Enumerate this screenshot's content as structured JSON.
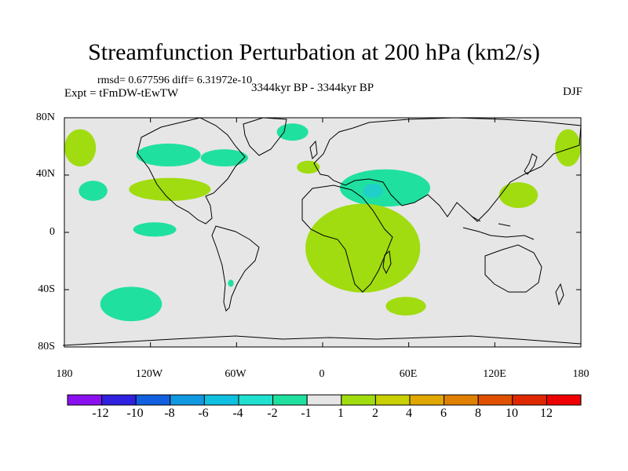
{
  "title": "Streamfunction Perturbation at 200 hPa (km2/s)",
  "stats": "rmsd= 0.677596 diff= 6.31972e-10",
  "expt": "Expt = tFmDW-tEwTW",
  "period": "3344kyr BP - 3344kyr BP",
  "season": "DJF",
  "colors": {
    "land_sea_bg": "#e6e6e6",
    "neg_1_2": "#20e0a0",
    "neg_2_4": "#20d0c8",
    "pos_1_2": "#a0dc10",
    "pos_2_4": "#c8d000"
  },
  "lat_labels": [
    "80N",
    "40N",
    "0",
    "40S",
    "80S"
  ],
  "lon_labels": [
    "180",
    "120W",
    "60W",
    "0",
    "60E",
    "120E",
    "180"
  ],
  "colorbar": {
    "labels": [
      "-12",
      "-10",
      "-8",
      "-6",
      "-4",
      "-2",
      "-1",
      "1",
      "2",
      "4",
      "6",
      "8",
      "10",
      "12"
    ],
    "colors": [
      "#8a10f0",
      "#3020e0",
      "#1060e0",
      "#1098e0",
      "#10c0e0",
      "#20e0d0",
      "#20e0a0",
      "#e6e6e6",
      "#a0dc10",
      "#c8d000",
      "#e0a800",
      "#e08000",
      "#e05000",
      "#e02800",
      "#f00000"
    ]
  },
  "anomalies": [
    {
      "name": "n-pacific-north-pos",
      "lon": [
        -180,
        -158
      ],
      "lat": [
        46,
        72
      ],
      "cls": "pos_1_2"
    },
    {
      "name": "n-pacific-dateline-pos",
      "lon": [
        162,
        180
      ],
      "lat": [
        46,
        72
      ],
      "cls": "pos_1_2"
    },
    {
      "name": "n-america-neg",
      "lon": [
        -130,
        -85
      ],
      "lat": [
        46,
        62
      ],
      "cls": "neg_1_2"
    },
    {
      "name": "n-atlantic-neg",
      "lon": [
        -85,
        -52
      ],
      "lat": [
        46,
        58
      ],
      "cls": "neg_1_2"
    },
    {
      "name": "greenland-sea-neg",
      "lon": [
        -32,
        -10
      ],
      "lat": [
        64,
        76
      ],
      "cls": "neg_1_2"
    },
    {
      "name": "subtropical-pacific-neg",
      "lon": [
        -170,
        -150
      ],
      "lat": [
        22,
        36
      ],
      "cls": "neg_1_2"
    },
    {
      "name": "subtropical-atlantic-pos",
      "lon": [
        -135,
        -78
      ],
      "lat": [
        22,
        38
      ],
      "cls": "pos_1_2"
    },
    {
      "name": "e-atlantic-pos",
      "lon": [
        -18,
        -2
      ],
      "lat": [
        41,
        50
      ],
      "cls": "pos_1_2"
    },
    {
      "name": "middle-east-neg",
      "lon": [
        12,
        75
      ],
      "lat": [
        18,
        44
      ],
      "cls": "neg_1_2"
    },
    {
      "name": "middle-east-core-neg",
      "lon": [
        28,
        42
      ],
      "lat": [
        24,
        34
      ],
      "cls": "neg_2_4"
    },
    {
      "name": "w-pacific-pos",
      "lon": [
        123,
        150
      ],
      "lat": [
        17,
        35
      ],
      "cls": "pos_1_2"
    },
    {
      "name": "e-pacific-eq-neg",
      "lon": [
        -132,
        -102
      ],
      "lat": [
        -3,
        7
      ],
      "cls": "neg_1_2"
    },
    {
      "name": "africa-pos",
      "lon": [
        -12,
        68
      ],
      "lat": [
        -42,
        20
      ],
      "cls": "pos_1_2"
    },
    {
      "name": "s-america-small-neg",
      "lon": [
        -66,
        -62
      ],
      "lat": [
        -38,
        -33
      ],
      "cls": "neg_1_2"
    },
    {
      "name": "s-pacific-neg",
      "lon": [
        -155,
        -112
      ],
      "lat": [
        -62,
        -38
      ],
      "cls": "neg_1_2"
    },
    {
      "name": "s-indian-pos",
      "lon": [
        44,
        72
      ],
      "lat": [
        -58,
        -45
      ],
      "cls": "pos_1_2"
    }
  ]
}
